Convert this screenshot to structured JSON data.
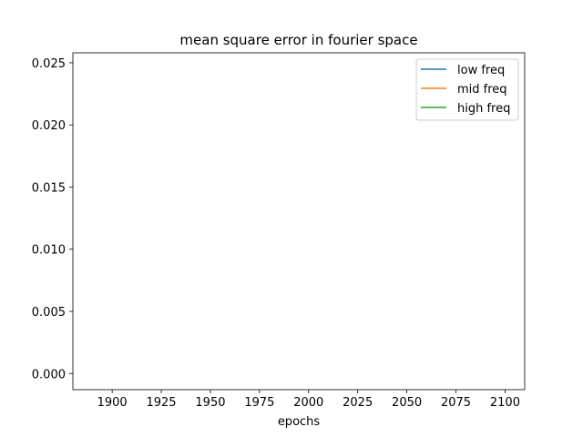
{
  "chart_data": {
    "type": "line",
    "title": "mean square error in fourier space",
    "xlabel": "epochs",
    "ylabel": "",
    "xlim": [
      1880,
      2110
    ],
    "ylim": [
      -0.0013,
      0.0258
    ],
    "xticks": [
      1900,
      1925,
      1950,
      1975,
      2000,
      2025,
      2050,
      2075,
      2100
    ],
    "xtick_labels": [
      "1900",
      "1925",
      "1950",
      "1975",
      "2000",
      "2025",
      "2050",
      "2075",
      "2100"
    ],
    "yticks": [
      0.0,
      0.005,
      0.01,
      0.015,
      0.02,
      0.025
    ],
    "ytick_labels": [
      "0.000",
      "0.005",
      "0.010",
      "0.015",
      "0.020",
      "0.025"
    ],
    "grid": false,
    "legend_position": "top-right",
    "series": [
      {
        "name": "low freq",
        "color": "#1f77b4",
        "x": [],
        "values": []
      },
      {
        "name": "mid freq",
        "color": "#ff7f0e",
        "x": [],
        "values": []
      },
      {
        "name": "high freq",
        "color": "#2ca02c",
        "x": [],
        "values": []
      }
    ]
  }
}
